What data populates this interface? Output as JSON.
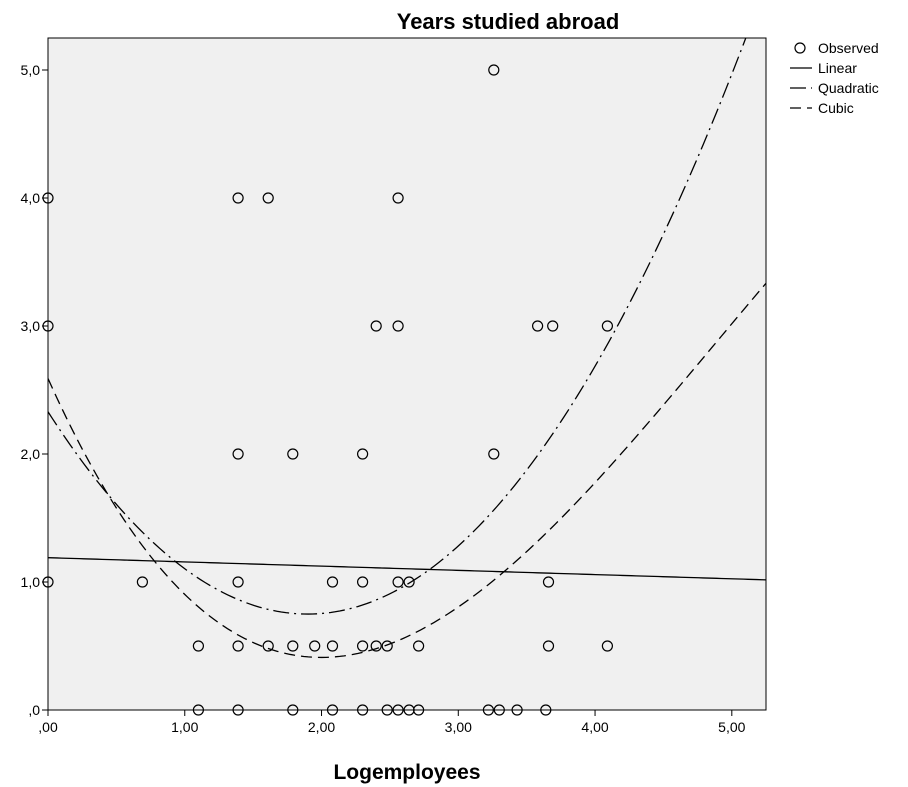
{
  "chart_data": {
    "type": "scatter",
    "title": "Years studied abroad",
    "xlabel": "Logemployees",
    "ylabel": "",
    "xlim": [
      0,
      5.25
    ],
    "ylim": [
      0,
      5.25
    ],
    "xticks": [
      0,
      1,
      2,
      3,
      4,
      5
    ],
    "xtick_labels": [
      ",00",
      "1,00",
      "2,00",
      "3,00",
      "4,00",
      "5,00"
    ],
    "yticks": [
      0,
      1,
      2,
      3,
      4,
      5
    ],
    "ytick_labels": [
      ",0",
      "1,0",
      "2,0",
      "3,0",
      "4,0",
      "5,0"
    ],
    "grid": false,
    "legend_position": "top-right",
    "colors": {
      "plot_bg": "#f0f0f0",
      "ink": "#000000"
    },
    "legend": [
      {
        "label": "Observed",
        "kind": "circle"
      },
      {
        "label": "Linear",
        "kind": "solid"
      },
      {
        "label": "Quadratic",
        "kind": "dashdot"
      },
      {
        "label": "Cubic",
        "kind": "dash"
      }
    ],
    "observed": {
      "name": "Observed",
      "points": [
        [
          0.0,
          4.0
        ],
        [
          0.0,
          3.0
        ],
        [
          0.0,
          1.0
        ],
        [
          0.69,
          1.0
        ],
        [
          1.1,
          0.5
        ],
        [
          1.1,
          0.0
        ],
        [
          1.39,
          4.0
        ],
        [
          1.39,
          2.0
        ],
        [
          1.39,
          1.0
        ],
        [
          1.39,
          0.5
        ],
        [
          1.39,
          0.0
        ],
        [
          1.61,
          4.0
        ],
        [
          1.61,
          0.5
        ],
        [
          1.79,
          2.0
        ],
        [
          1.79,
          0.5
        ],
        [
          1.79,
          0.0
        ],
        [
          1.95,
          0.5
        ],
        [
          2.08,
          1.0
        ],
        [
          2.08,
          0.5
        ],
        [
          2.08,
          0.0
        ],
        [
          2.3,
          2.0
        ],
        [
          2.3,
          1.0
        ],
        [
          2.3,
          0.5
        ],
        [
          2.3,
          0.0
        ],
        [
          2.4,
          3.0
        ],
        [
          2.4,
          0.5
        ],
        [
          2.48,
          0.5
        ],
        [
          2.48,
          0.0
        ],
        [
          2.56,
          4.0
        ],
        [
          2.56,
          3.0
        ],
        [
          2.56,
          1.0
        ],
        [
          2.56,
          0.0
        ],
        [
          2.64,
          1.0
        ],
        [
          2.64,
          0.0
        ],
        [
          2.71,
          0.5
        ],
        [
          2.71,
          0.0
        ],
        [
          3.22,
          0.0
        ],
        [
          3.26,
          5.0
        ],
        [
          3.26,
          2.0
        ],
        [
          3.3,
          0.0
        ],
        [
          3.43,
          0.0
        ],
        [
          3.58,
          3.0
        ],
        [
          3.64,
          0.0
        ],
        [
          3.66,
          1.0
        ],
        [
          3.66,
          0.5
        ],
        [
          3.69,
          3.0
        ],
        [
          4.09,
          3.0
        ],
        [
          4.09,
          0.5
        ]
      ]
    },
    "fits": [
      {
        "name": "Linear",
        "coefficients": [
          1.19,
          -0.033
        ]
      },
      {
        "name": "Quadratic",
        "coefficients": [
          2.33,
          -1.665,
          0.4385
        ]
      },
      {
        "name": "Cubic",
        "coefficients": [
          2.59,
          -2.387,
          0.7515,
          -0.0514
        ]
      }
    ]
  }
}
